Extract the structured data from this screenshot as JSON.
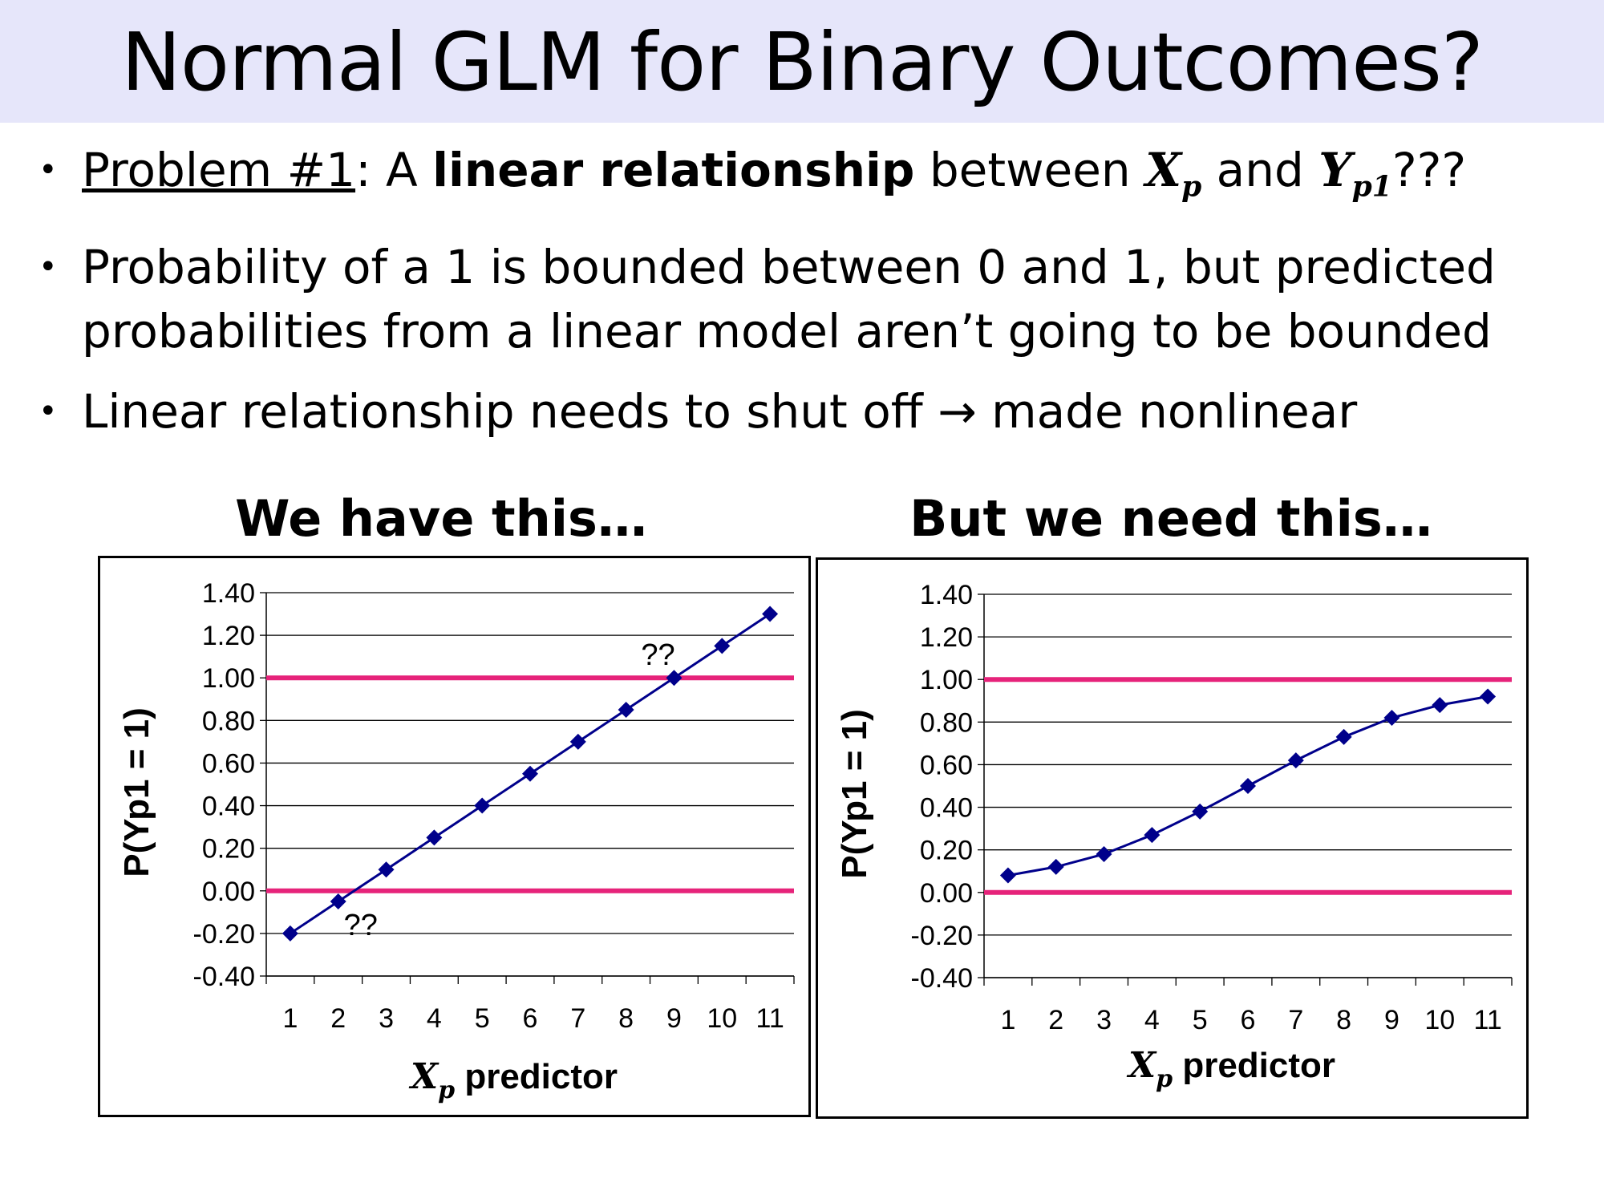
{
  "title": "Normal GLM for Binary Outcomes?",
  "bullets": {
    "b1": {
      "prefix": "Problem #1",
      "colon": ": A ",
      "bold": "linear relationship",
      "mid": " between ",
      "var1": "X",
      "var1_sub": "p",
      "and": " and ",
      "var2": "Y",
      "var2_sub": "p1",
      "suffix": "???"
    },
    "b2": "Probability of a 1 is bounded between 0 and 1, but predicted probabilities from a linear model aren’t going to be bounded",
    "b3": "Linear relationship needs to shut off → made nonlinear"
  },
  "colors": {
    "series": "#00008b",
    "bound_lines": "#e6237a",
    "grid": "#000000"
  },
  "chart_data": [
    {
      "type": "line",
      "heading": "We have this…",
      "x": [
        1,
        2,
        3,
        4,
        5,
        6,
        7,
        8,
        9,
        10,
        11
      ],
      "values": [
        -0.2,
        -0.05,
        0.1,
        0.25,
        0.4,
        0.55,
        0.7,
        0.85,
        1.0,
        1.15,
        1.3
      ],
      "xlabel": "Xp predictor",
      "xlabel_var": "X",
      "xlabel_sub": "p",
      "xlabel_rest": " predictor",
      "ylabel": "P(Yp1 = 1)",
      "ylim": [
        -0.4,
        1.4
      ],
      "yticks": [
        "1.40",
        "1.20",
        "1.00",
        "0.80",
        "0.60",
        "0.40",
        "0.20",
        "0.00",
        "-0.20",
        "-0.40"
      ],
      "reference_lines": [
        0.0,
        1.0
      ],
      "grid": true,
      "marker": "diamond",
      "annotations": [
        {
          "text": "??",
          "x": 9,
          "y": 1.0,
          "position": "above"
        },
        {
          "text": "??",
          "x": 2,
          "y": -0.05,
          "position": "below"
        }
      ]
    },
    {
      "type": "line",
      "heading": "But we need this…",
      "x": [
        1,
        2,
        3,
        4,
        5,
        6,
        7,
        8,
        9,
        10,
        11
      ],
      "values": [
        0.08,
        0.12,
        0.18,
        0.27,
        0.38,
        0.5,
        0.62,
        0.73,
        0.82,
        0.88,
        0.92
      ],
      "xlabel": "Xp predictor",
      "xlabel_var": "X",
      "xlabel_sub": "p",
      "xlabel_rest": " predictor",
      "ylabel": "P(Yp1 = 1)",
      "ylim": [
        -0.4,
        1.4
      ],
      "yticks": [
        "1.40",
        "1.20",
        "1.00",
        "0.80",
        "0.60",
        "0.40",
        "0.20",
        "0.00",
        "-0.20",
        "-0.40"
      ],
      "reference_lines": [
        0.0,
        1.0
      ],
      "grid": true,
      "marker": "diamond",
      "annotations": []
    }
  ]
}
